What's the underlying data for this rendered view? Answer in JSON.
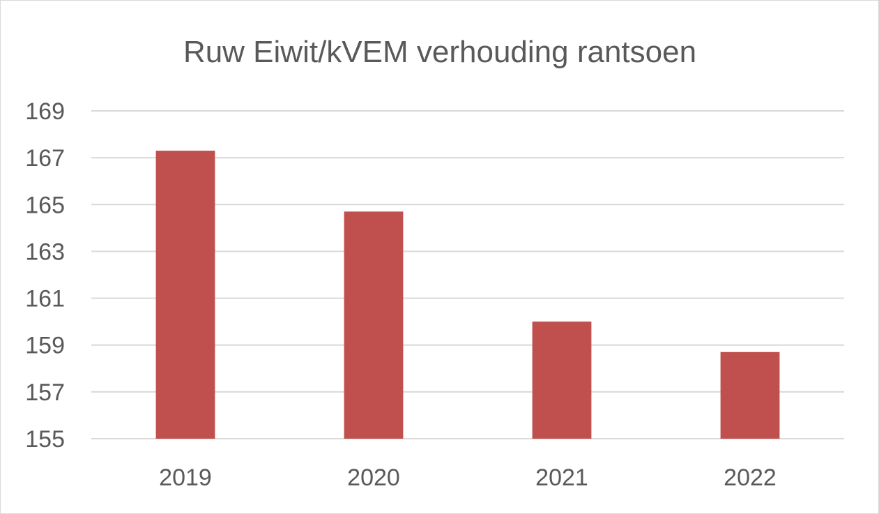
{
  "chart_data": {
    "type": "bar",
    "title": "Ruw Eiwit/kVEM verhouding rantsoen",
    "xlabel": "",
    "ylabel": "",
    "categories": [
      "2019",
      "2020",
      "2021",
      "2022"
    ],
    "series": [
      {
        "values": [
          167.3,
          164.7,
          160.0,
          158.7
        ]
      }
    ],
    "ylim": [
      155,
      169
    ],
    "yticks": [
      155,
      157,
      159,
      161,
      163,
      165,
      167,
      169
    ],
    "ytick_labels": [
      "155",
      "157",
      "159",
      "161",
      "163",
      "165",
      "167",
      "169"
    ],
    "grid": true,
    "legend": "none",
    "colors": {
      "bar": "#C0504D",
      "grid": "#D9D9D9",
      "text": "#595959"
    }
  }
}
